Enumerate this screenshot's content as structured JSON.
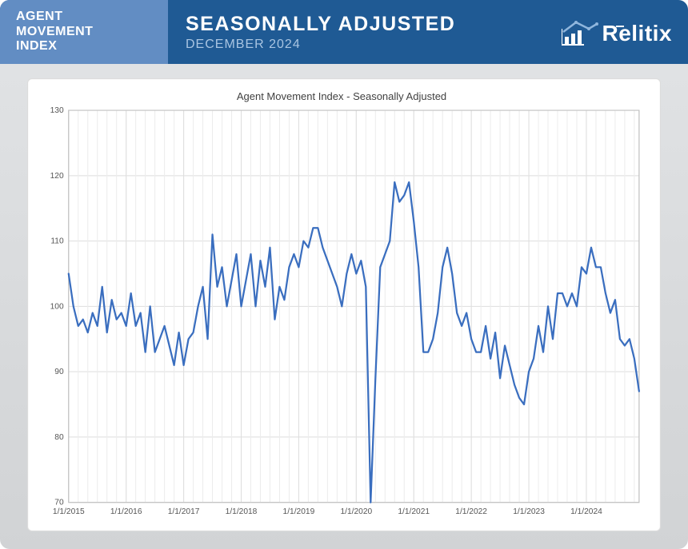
{
  "header": {
    "left_line1": "AGENT",
    "left_line2": "MOVEMENT",
    "left_line3": "INDEX",
    "title": "SEASONALLY ADJUSTED",
    "subtitle": "DECEMBER 2024",
    "logo_text": "Relitix",
    "bg_color": "#1f5a94",
    "left_bg_color": "#628dc3",
    "subtitle_color": "#a9c5e2"
  },
  "chart": {
    "type": "line",
    "title": "Agent Movement Index - Seasonally Adjusted",
    "title_fontsize": 13,
    "title_color": "#414141",
    "background_color": "#ffffff",
    "plot_background": "#ffffff",
    "grid_color": "#ececec",
    "grid_major_color": "#dedede",
    "axis_color": "#bfbfbf",
    "axis_label_color": "#555555",
    "axis_label_fontsize": 10,
    "line_color": "#3a6ebf",
    "line_width": 2.2,
    "ylim": [
      70,
      130
    ],
    "ytick_step": 10,
    "yticks": [
      70,
      80,
      90,
      100,
      110,
      120,
      130
    ],
    "x_start": "2015-01-01",
    "x_end": "2024-12-01",
    "xtick_labels": [
      "1/1/2015",
      "1/1/2016",
      "1/1/2017",
      "1/1/2018",
      "1/1/2019",
      "1/1/2020",
      "1/1/2021",
      "1/1/2022",
      "1/1/2023",
      "1/1/2024"
    ],
    "xtick_months": [
      0,
      12,
      24,
      36,
      48,
      60,
      72,
      84,
      96,
      108
    ],
    "x_minor_grid_every_months": 2,
    "series": [
      105,
      100,
      97,
      98,
      96,
      99,
      97,
      103,
      96,
      101,
      98,
      99,
      97,
      102,
      97,
      99,
      93,
      100,
      93,
      95,
      97,
      94,
      91,
      96,
      91,
      95,
      96,
      100,
      103,
      95,
      111,
      103,
      106,
      100,
      104,
      108,
      100,
      104,
      108,
      100,
      107,
      103,
      109,
      98,
      103,
      101,
      106,
      108,
      106,
      110,
      109,
      112,
      112,
      109,
      107,
      105,
      103,
      100,
      105,
      108,
      105,
      107,
      103,
      70,
      89,
      106,
      108,
      110,
      119,
      116,
      117,
      119,
      113,
      106,
      93,
      93,
      95,
      99,
      106,
      109,
      105,
      99,
      97,
      99,
      95,
      93,
      93,
      97,
      92,
      96,
      89,
      94,
      91,
      88,
      86,
      85,
      90,
      92,
      97,
      93,
      100,
      95,
      102,
      102,
      100,
      102,
      100,
      106,
      105,
      109,
      106,
      106,
      102,
      99,
      101,
      95,
      94,
      95,
      92,
      87
    ]
  }
}
